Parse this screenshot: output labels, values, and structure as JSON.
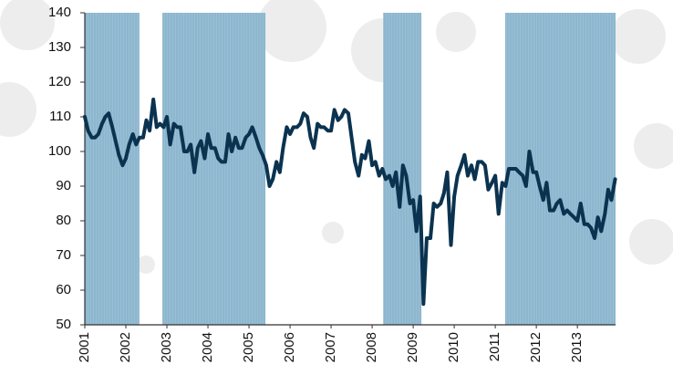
{
  "chart_data": {
    "type": "line",
    "x": [
      2001,
      2001.08,
      2001.17,
      2001.25,
      2001.33,
      2001.42,
      2001.5,
      2001.58,
      2001.67,
      2001.75,
      2001.83,
      2001.92,
      2002,
      2002.08,
      2002.17,
      2002.25,
      2002.33,
      2002.42,
      2002.5,
      2002.58,
      2002.67,
      2002.75,
      2002.83,
      2002.92,
      2003,
      2003.08,
      2003.17,
      2003.25,
      2003.33,
      2003.42,
      2003.5,
      2003.58,
      2003.67,
      2003.75,
      2003.83,
      2003.92,
      2004,
      2004.08,
      2004.17,
      2004.25,
      2004.33,
      2004.42,
      2004.5,
      2004.58,
      2004.67,
      2004.75,
      2004.83,
      2004.92,
      2005,
      2005.08,
      2005.17,
      2005.25,
      2005.33,
      2005.42,
      2005.5,
      2005.58,
      2005.67,
      2005.75,
      2005.83,
      2005.92,
      2006,
      2006.08,
      2006.17,
      2006.25,
      2006.33,
      2006.42,
      2006.5,
      2006.58,
      2006.67,
      2006.75,
      2006.83,
      2006.92,
      2007,
      2007.08,
      2007.17,
      2007.25,
      2007.33,
      2007.42,
      2007.5,
      2007.58,
      2007.67,
      2007.75,
      2007.83,
      2007.92,
      2008,
      2008.08,
      2008.17,
      2008.25,
      2008.33,
      2008.42,
      2008.5,
      2008.58,
      2008.67,
      2008.75,
      2008.83,
      2008.92,
      2009,
      2009.08,
      2009.17,
      2009.25,
      2009.33,
      2009.42,
      2009.5,
      2009.58,
      2009.67,
      2009.75,
      2009.83,
      2009.92,
      2010,
      2010.08,
      2010.17,
      2010.25,
      2010.33,
      2010.42,
      2010.5,
      2010.58,
      2010.67,
      2010.75,
      2010.83,
      2010.92,
      2011,
      2011.08,
      2011.17,
      2011.25,
      2011.33,
      2011.42,
      2011.5,
      2011.58,
      2011.67,
      2011.75,
      2011.83,
      2011.92,
      2012,
      2012.08,
      2012.17,
      2012.25,
      2012.33,
      2012.42,
      2012.5,
      2012.58,
      2012.67,
      2012.75,
      2012.83,
      2012.92,
      2013,
      2013.08,
      2013.17,
      2013.25,
      2013.33,
      2013.42,
      2013.5,
      2013.58,
      2013.67,
      2013.75,
      2013.83,
      2013.92
    ],
    "values": [
      110,
      106,
      104,
      104,
      105,
      108,
      110,
      111,
      107,
      103,
      99,
      96,
      98,
      102,
      105,
      102,
      104,
      104,
      109,
      106,
      115,
      107,
      108,
      107,
      110,
      102,
      108,
      107,
      107,
      100,
      100,
      102,
      94,
      101,
      103,
      98,
      105,
      101,
      101,
      98,
      97,
      97,
      105,
      100,
      104,
      101,
      101,
      104,
      105,
      107,
      104,
      101,
      99,
      96,
      90,
      92,
      97,
      94,
      101,
      107,
      105,
      107,
      107,
      108,
      111,
      110,
      104,
      101,
      108,
      107,
      107,
      106,
      106,
      112,
      109,
      110,
      112,
      111,
      104,
      97,
      93,
      99,
      98,
      103,
      96,
      97,
      93,
      95,
      92,
      93,
      90,
      94,
      84,
      96,
      93,
      85,
      86,
      77,
      87,
      56,
      75,
      75,
      85,
      84,
      85,
      88,
      94,
      73,
      87,
      93,
      96,
      99,
      93,
      96,
      92,
      97,
      97,
      96,
      89,
      91,
      93,
      82,
      91,
      90,
      95,
      95,
      95,
      94,
      93,
      90,
      100,
      94,
      94,
      90,
      86,
      91,
      83,
      83,
      85,
      86,
      82,
      83,
      82,
      81,
      80,
      85,
      79,
      79,
      78,
      75,
      81,
      77,
      82,
      89,
      86,
      92
    ],
    "color": "#0b3350",
    "shaded_ranges": [
      [
        2001,
        2002.33
      ],
      [
        2002.89,
        2005.4
      ],
      [
        2008.27,
        2009.2
      ],
      [
        2011.24,
        2013.93
      ]
    ],
    "shade_color": "#8db7cf",
    "xlim": [
      2001,
      2013.93
    ],
    "xticks": [
      2001,
      2002,
      2003,
      2004,
      2005,
      2006,
      2007,
      2008,
      2009,
      2010,
      2011,
      2012,
      2013
    ],
    "ylim": [
      50,
      140
    ],
    "yticks": [
      50,
      60,
      70,
      80,
      90,
      100,
      110,
      120,
      130,
      140
    ]
  }
}
